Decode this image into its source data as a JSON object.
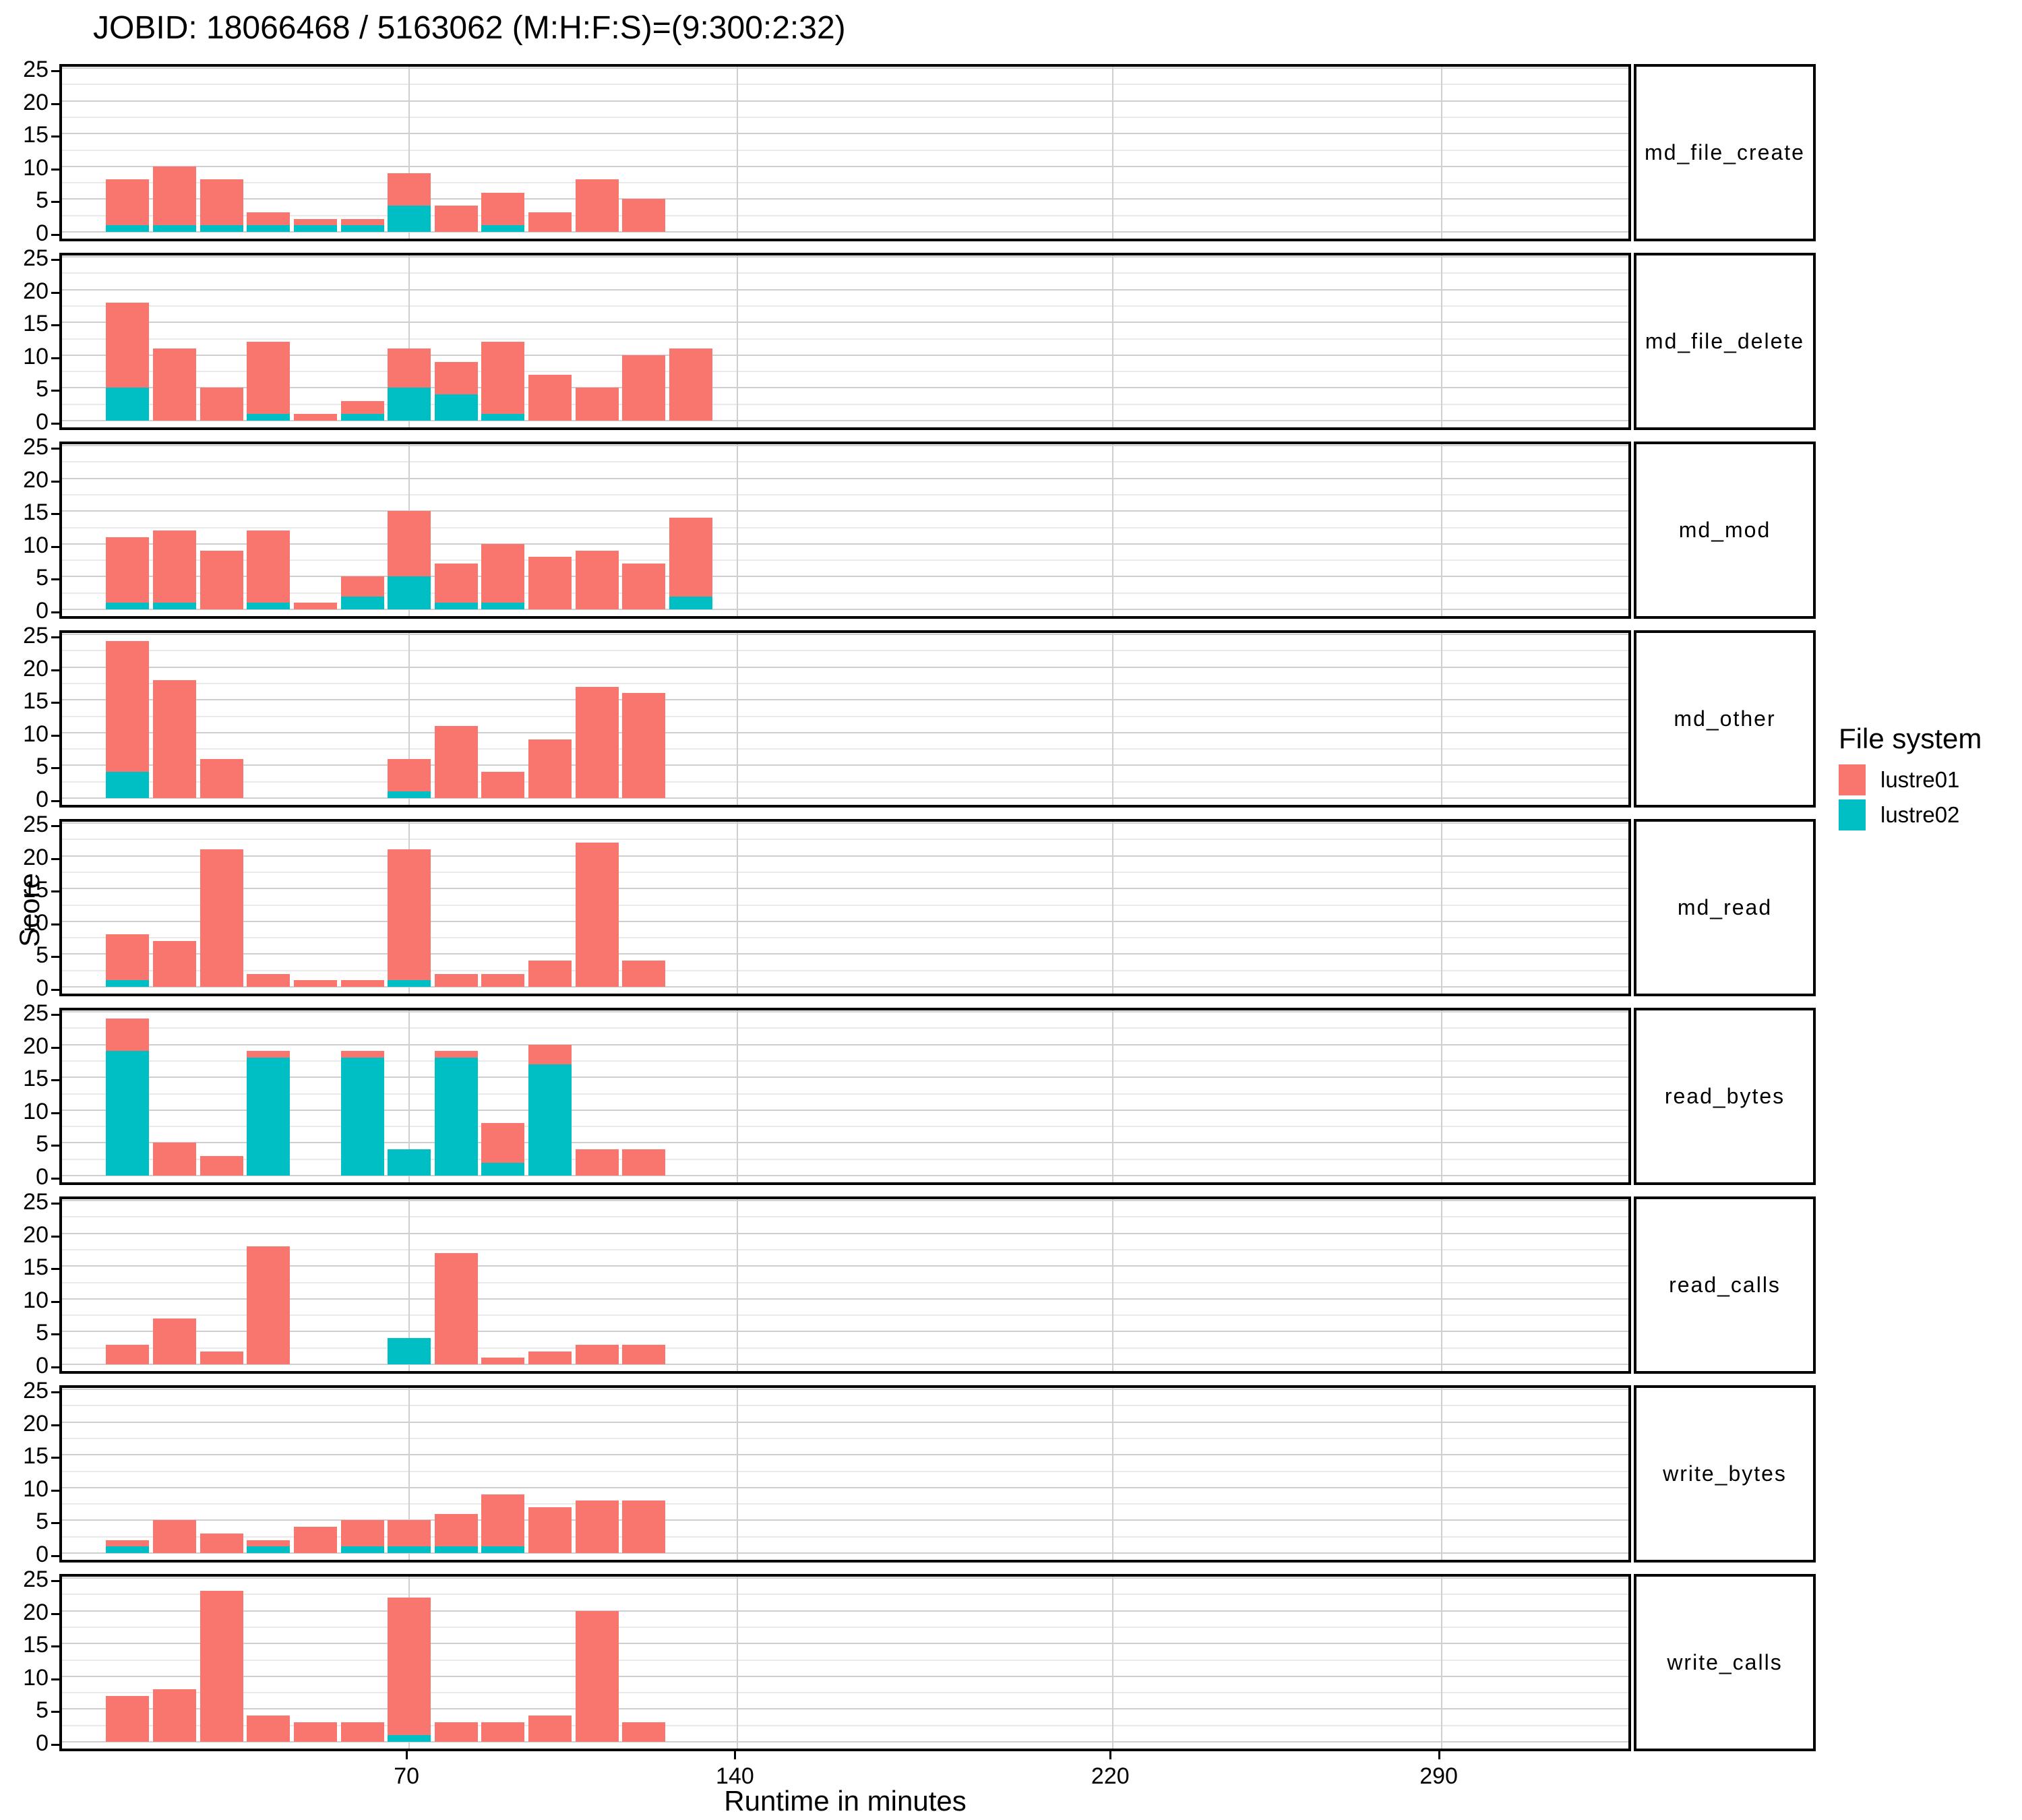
{
  "title": "JOBID: 18066468 / 5163062 (M:H:F:S)=(9:300:2:32)",
  "chart_data": {
    "type": "bar",
    "stacked": true,
    "title": "JOBID: 18066468 / 5163062 (M:H:F:S)=(9:300:2:32)",
    "xlabel": "Runtime in minutes",
    "ylabel": "Score",
    "x_ticks": [
      70,
      140,
      220,
      290
    ],
    "y_ticks": [
      0,
      5,
      10,
      15,
      20,
      25
    ],
    "y_minor_gridlines": [
      2.5,
      7.5,
      12.5,
      17.5,
      22.5
    ],
    "ylim": [
      0,
      25
    ],
    "x_range_minutes": [
      -4,
      331
    ],
    "x_bin_width_minutes": 10,
    "x_bin_centers_minutes": [
      10,
      20,
      30,
      40,
      50,
      60,
      70,
      80,
      90,
      100,
      110,
      120,
      130
    ],
    "grid": true,
    "legend_position": "right",
    "legend": {
      "title": "File system",
      "series": [
        {
          "name": "lustre01",
          "color": "#F8766D"
        },
        {
          "name": "lustre02",
          "color": "#00BFC4"
        }
      ]
    },
    "facets": [
      {
        "label": "md_file_create",
        "lustre02": [
          1,
          1,
          1,
          1,
          1,
          1,
          4,
          0,
          1,
          0,
          0,
          0,
          0
        ],
        "lustre01": [
          7,
          9,
          7,
          2,
          1,
          1,
          5,
          4,
          5,
          3,
          8,
          5,
          0
        ]
      },
      {
        "label": "md_file_delete",
        "lustre02": [
          5,
          0,
          0,
          1,
          0,
          1,
          5,
          4,
          1,
          0,
          0,
          0,
          0
        ],
        "lustre01": [
          13,
          11,
          5,
          11,
          1,
          2,
          6,
          5,
          11,
          7,
          5,
          10,
          11
        ]
      },
      {
        "label": "md_mod",
        "lustre02": [
          1,
          1,
          0,
          1,
          0,
          2,
          5,
          1,
          1,
          0,
          0,
          0,
          2
        ],
        "lustre01": [
          10,
          11,
          9,
          11,
          1,
          3,
          10,
          6,
          9,
          8,
          9,
          7,
          12
        ]
      },
      {
        "label": "md_other",
        "lustre02": [
          4,
          0,
          0,
          0,
          0,
          0,
          1,
          0,
          0,
          0,
          0,
          0,
          0
        ],
        "lustre01": [
          20,
          18,
          6,
          0,
          0,
          0,
          5,
          11,
          4,
          9,
          17,
          16,
          0
        ]
      },
      {
        "label": "md_read",
        "lustre02": [
          1,
          0,
          0,
          0,
          0,
          0,
          1,
          0,
          0,
          0,
          0,
          0,
          0
        ],
        "lustre01": [
          7,
          7,
          21,
          2,
          1,
          1,
          20,
          2,
          2,
          4,
          22,
          4,
          0
        ]
      },
      {
        "label": "read_bytes",
        "lustre02": [
          19,
          0,
          0,
          18,
          0,
          18,
          4,
          18,
          2,
          17,
          0,
          0,
          0
        ],
        "lustre01": [
          5,
          5,
          3,
          1,
          0,
          1,
          0,
          1,
          6,
          3,
          4,
          4,
          0
        ]
      },
      {
        "label": "read_calls",
        "lustre02": [
          0,
          0,
          0,
          0,
          0,
          0,
          4,
          0,
          0,
          0,
          0,
          0,
          0
        ],
        "lustre01": [
          3,
          7,
          2,
          18,
          0,
          0,
          0,
          17,
          1,
          2,
          3,
          3,
          0
        ]
      },
      {
        "label": "write_bytes",
        "lustre02": [
          1,
          0,
          0,
          1,
          0,
          1,
          1,
          1,
          1,
          0,
          0,
          0,
          0
        ],
        "lustre01": [
          1,
          5,
          3,
          1,
          4,
          4,
          4,
          5,
          8,
          7,
          8,
          8,
          0
        ]
      },
      {
        "label": "write_calls",
        "lustre02": [
          0,
          0,
          0,
          0,
          0,
          0,
          1,
          0,
          0,
          0,
          0,
          0,
          0
        ],
        "lustre01": [
          7,
          8,
          23,
          4,
          3,
          3,
          21,
          3,
          3,
          4,
          20,
          3,
          0
        ]
      }
    ]
  }
}
